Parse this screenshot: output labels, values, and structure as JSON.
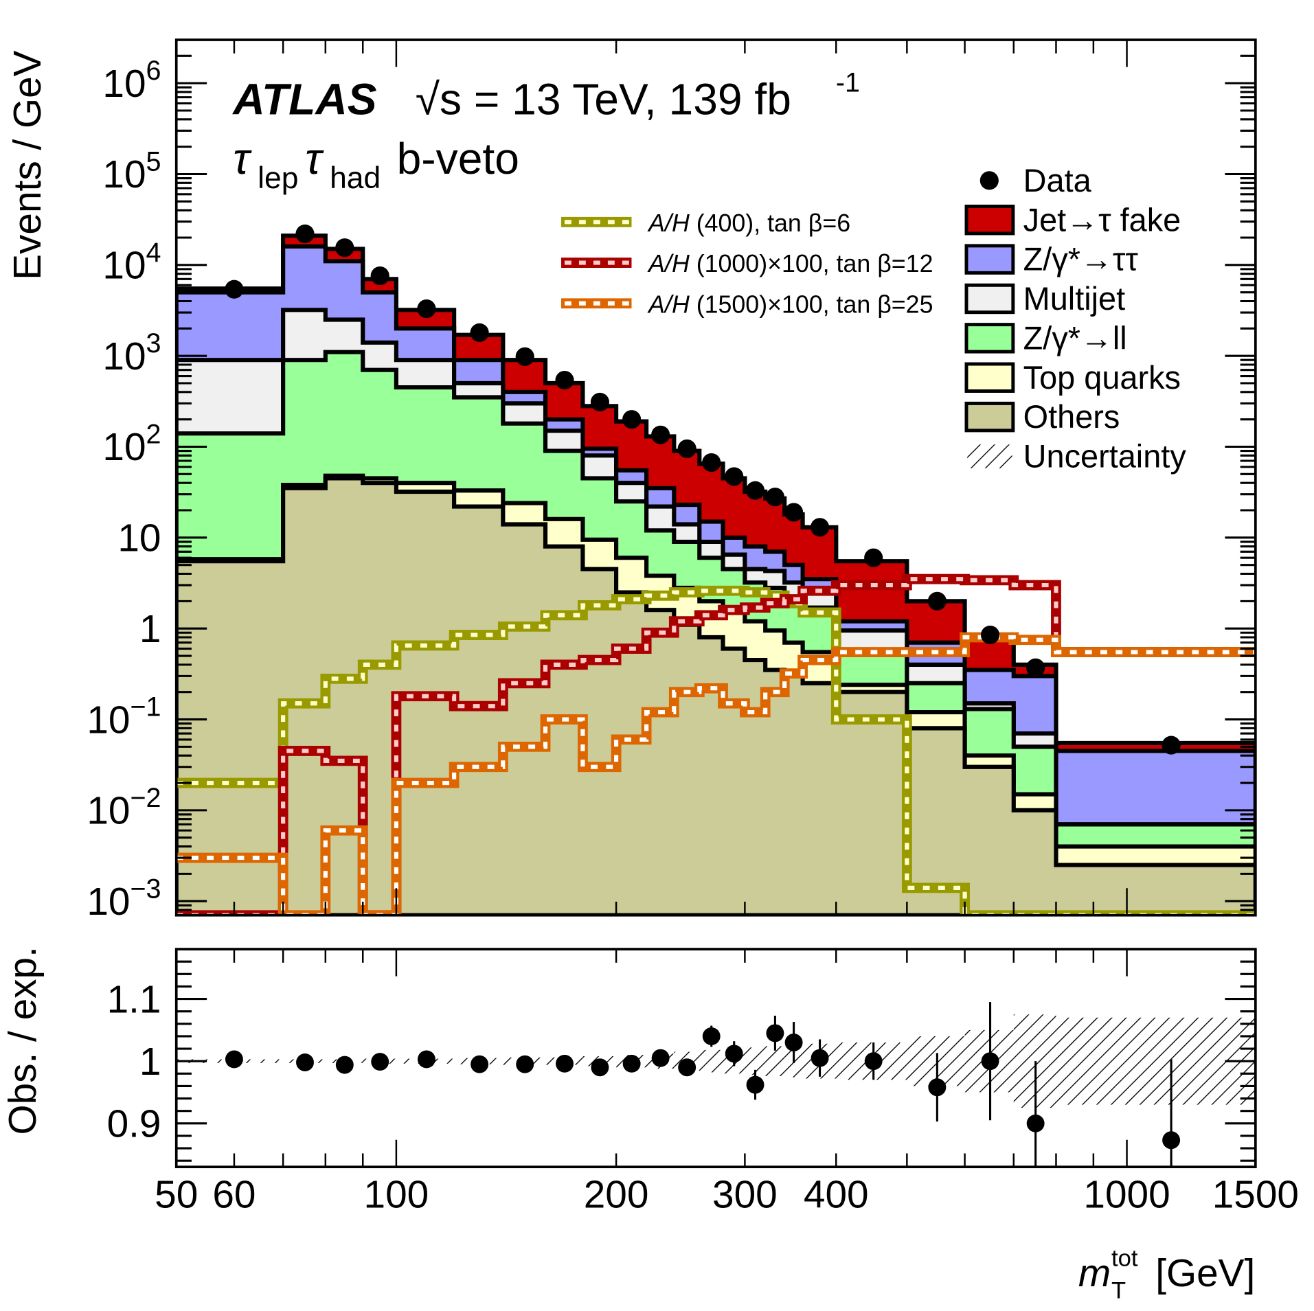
{
  "chart_data": {
    "type": "bar",
    "subtype": "stacked-histogram-with-ratio-panel",
    "experiment_label": "ATLAS",
    "energy_label": "√s = 13 TeV, 139 fb",
    "lumi_exponent": "-1",
    "channel_label": "τ",
    "channel_sub1": "lep",
    "channel_sub2": "had",
    "category_label": "b-veto",
    "xlabel": "m",
    "xlabel_sup": "tot",
    "xlabel_sub": "T",
    "xlabel_unit": "[GeV]",
    "ylabel": "Events / GeV",
    "ratio_ylabel": "Obs. / exp.",
    "xscale": "log",
    "yscale": "log",
    "xlim": [
      50,
      1500
    ],
    "ylim": [
      0.0007,
      3000000
    ],
    "ratio_ylim": [
      0.83,
      1.18
    ],
    "x_tick_labels": [
      "50",
      "60",
      "100",
      "200",
      "300",
      "400",
      "1000",
      "1500"
    ],
    "x_ticks": [
      50,
      60,
      100,
      200,
      300,
      400,
      1000,
      1500
    ],
    "y_tick_labels": [
      {
        "base": "10",
        "exp": "6",
        "value": 1000000
      },
      {
        "base": "10",
        "exp": "5",
        "value": 100000
      },
      {
        "base": "10",
        "exp": "4",
        "value": 10000
      },
      {
        "base": "10",
        "exp": "3",
        "value": 1000
      },
      {
        "base": "10",
        "exp": "2",
        "value": 100
      },
      {
        "base": "10",
        "exp": "",
        "value": 10
      },
      {
        "base": "1",
        "exp": "",
        "value": 1
      },
      {
        "base": "10",
        "exp": "−1",
        "value": 0.1
      },
      {
        "base": "10",
        "exp": "−2",
        "value": 0.01
      },
      {
        "base": "10",
        "exp": "−3",
        "value": 0.001
      }
    ],
    "ratio_tick_labels": [
      {
        "label": "1.1",
        "value": 1.1
      },
      {
        "label": "1",
        "value": 1.0
      },
      {
        "label": "0.9",
        "value": 0.9
      }
    ],
    "bin_edges": [
      50,
      70,
      80,
      90,
      100,
      120,
      140,
      160,
      180,
      200,
      220,
      240,
      260,
      280,
      300,
      320,
      340,
      360,
      400,
      500,
      600,
      700,
      800,
      1500
    ],
    "legend": {
      "placement": "top-right",
      "entries": [
        {
          "label": "Data",
          "kind": "marker",
          "color": "#000000"
        },
        {
          "label": "Jet→τ fake",
          "kind": "fill",
          "color": "#cc0000"
        },
        {
          "label": "Z/γ*→ττ",
          "kind": "fill",
          "color": "#9999ff"
        },
        {
          "label": "Multijet",
          "kind": "fill",
          "color": "#f0f0f0"
        },
        {
          "label": "Z/γ*→ll",
          "kind": "fill",
          "color": "#99ff99"
        },
        {
          "label": "Top quarks",
          "kind": "fill",
          "color": "#ffffcc"
        },
        {
          "label": "Others",
          "kind": "fill",
          "color": "#cccc99"
        },
        {
          "label": "Uncertainty",
          "kind": "hatch",
          "color": "#000000"
        }
      ]
    },
    "signal_legend": {
      "placement": "top-center",
      "entries": [
        {
          "label_prefix": "A/H",
          "label_rest": " (400), tan β=6",
          "color": "#999900",
          "dot": "#ffffcc"
        },
        {
          "label_prefix": "A/H",
          "label_rest": " (1000)×100, tan β=12",
          "color": "#aa0000",
          "dot": "#ffcccc"
        },
        {
          "label_prefix": "A/H",
          "label_rest": " (1500)×100, tan β=25",
          "color": "#dd6600",
          "dot": "#ffffff"
        }
      ]
    },
    "stack_order_bottom_to_top": [
      "Others",
      "Top quarks",
      "Z/γ*→ll",
      "Multijet",
      "Z/γ*→ττ",
      "Jet→τ fake"
    ],
    "stack_cumulative_tops": {
      "Others": [
        5.5,
        35,
        45,
        40,
        32,
        22,
        14,
        8,
        4.5,
        2.5,
        1.6,
        1.1,
        0.8,
        0.6,
        0.45,
        0.35,
        0.3,
        0.25,
        0.2,
        0.08,
        0.03,
        0.01,
        0.0025
      ],
      "Top quarks": [
        5.8,
        38,
        48,
        45,
        40,
        33,
        24,
        16,
        9.5,
        6,
        3.8,
        2.8,
        2.0,
        1.5,
        1.2,
        0.95,
        0.7,
        0.55,
        0.24,
        0.12,
        0.04,
        0.015,
        0.004
      ],
      "Z/γ*→ll": [
        140,
        900,
        1100,
        700,
        450,
        350,
        180,
        90,
        45,
        25,
        12,
        9,
        6,
        4.5,
        3.2,
        2.8,
        2.2,
        1.7,
        0.55,
        0.25,
        0.13,
        0.05,
        0.007
      ],
      "Multijet": [
        900,
        3200,
        2500,
        1400,
        900,
        500,
        300,
        150,
        80,
        40,
        22,
        14,
        9,
        6.5,
        4.5,
        4.3,
        3.2,
        2.5,
        0.95,
        0.4,
        0.15,
        0.07,
        0.007
      ],
      "Z/γ*→ττ": [
        5000,
        16000,
        11000,
        5000,
        2000,
        900,
        400,
        200,
        95,
        55,
        35,
        23,
        15,
        10,
        8,
        7,
        5,
        3.5,
        1.2,
        0.7,
        0.35,
        0.3,
        0.045
      ],
      "Jet→τ fake": [
        5500,
        21000,
        15000,
        7000,
        3200,
        1700,
        900,
        500,
        280,
        190,
        130,
        90,
        65,
        45,
        32,
        27,
        18,
        13,
        5.5,
        2,
        0.8,
        0.4,
        0.055
      ]
    },
    "data_points": {
      "x": [
        60,
        75,
        85,
        95,
        110,
        130,
        150,
        170,
        190,
        210,
        230,
        250,
        270,
        290,
        310,
        330,
        350,
        380,
        450,
        550,
        650,
        750,
        1150
      ],
      "y": [
        5400,
        22000,
        15500,
        7600,
        3300,
        1800,
        980,
        540,
        310,
        200,
        135,
        95,
        67,
        47,
        33,
        28,
        19,
        13,
        6,
        2.0,
        0.85,
        0.37,
        0.052
      ]
    },
    "signals": [
      {
        "name": "A/H (400), tan β=6",
        "values": [
          0.02,
          0.15,
          0.28,
          0.4,
          0.65,
          0.85,
          1.05,
          1.4,
          1.8,
          2.1,
          2.3,
          2.5,
          2.6,
          2.6,
          2.5,
          2.3,
          1.9,
          1.5,
          0.1,
          0.0014,
          0.0007,
          0.0007,
          0.0007
        ]
      },
      {
        "name": "A/H (1000)×100, tan β=12",
        "values": [
          0.0007,
          0.045,
          0.035,
          0.0007,
          0.18,
          0.14,
          0.25,
          0.4,
          0.45,
          0.6,
          0.9,
          1.2,
          1.4,
          1.6,
          1.7,
          1.9,
          2.1,
          2.6,
          3.0,
          3.5,
          3.4,
          3.0,
          0.55
        ]
      },
      {
        "name": "A/H (1500)×100, tan β=25",
        "values": [
          0.003,
          0.0007,
          0.006,
          0.0007,
          0.02,
          0.03,
          0.05,
          0.1,
          0.03,
          0.06,
          0.12,
          0.2,
          0.22,
          0.15,
          0.12,
          0.2,
          0.32,
          0.45,
          0.55,
          0.55,
          0.8,
          0.75,
          0.55
        ]
      }
    ],
    "ratio": {
      "x": [
        60,
        75,
        85,
        95,
        110,
        130,
        150,
        170,
        190,
        210,
        230,
        250,
        270,
        290,
        310,
        330,
        350,
        380,
        450,
        550,
        650,
        750,
        1150
      ],
      "y": [
        1.003,
        0.998,
        0.994,
        0.999,
        1.003,
        0.995,
        0.995,
        0.996,
        0.99,
        0.996,
        1.005,
        0.99,
        1.04,
        1.012,
        0.962,
        1.045,
        1.03,
        1.005,
        1.0,
        0.958,
        1.0,
        0.9,
        0.873
      ],
      "yerr": [
        0.002,
        0.002,
        0.002,
        0.003,
        0.004,
        0.005,
        0.006,
        0.007,
        0.009,
        0.01,
        0.012,
        0.014,
        0.017,
        0.02,
        0.024,
        0.028,
        0.033,
        0.03,
        0.03,
        0.055,
        0.095,
        0.1,
        0.13
      ],
      "uncertainty_band": [
        0.003,
        0.003,
        0.003,
        0.004,
        0.004,
        0.005,
        0.006,
        0.006,
        0.008,
        0.01,
        0.012,
        0.015,
        0.018,
        0.02,
        0.022,
        0.024,
        0.026,
        0.028,
        0.03,
        0.04,
        0.05,
        0.075,
        0.07
      ]
    }
  }
}
